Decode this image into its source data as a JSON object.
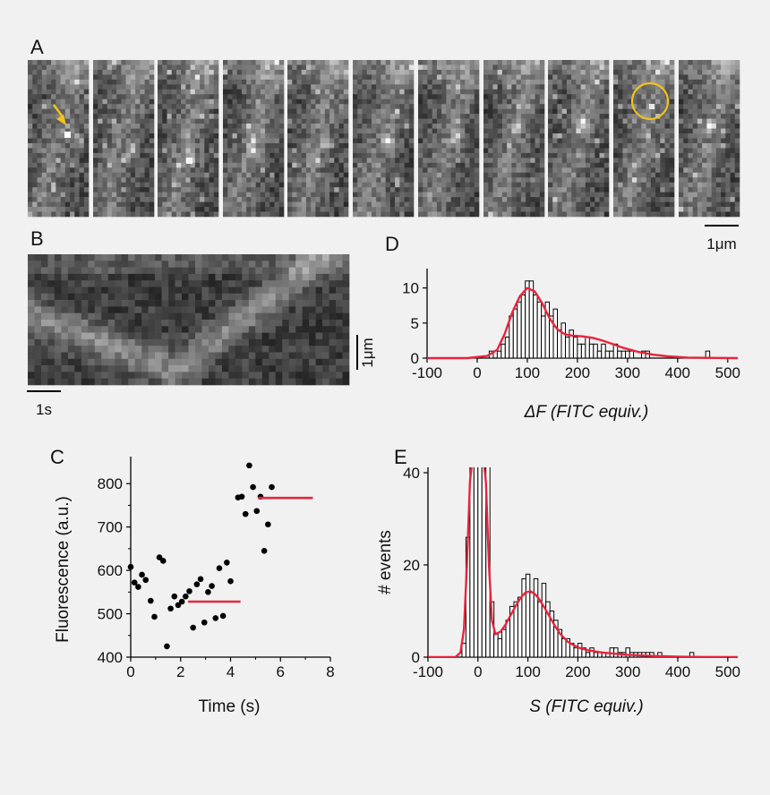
{
  "panel_labels": {
    "a": "A",
    "b": "B",
    "c": "C",
    "d": "D",
    "e": "E"
  },
  "scalebars": {
    "a": "1μm",
    "b_space": "1μm",
    "b_time": "1s"
  },
  "colors": {
    "fit": "#e8243c",
    "marker": "#f2c21b",
    "bar_edge": "#000000",
    "background": "#f1f1f1"
  },
  "chart_data": [
    {
      "panel": "C",
      "type": "scatter",
      "xlabel": "Time (s)",
      "ylabel": "Fluorescence (a.u.)",
      "xlim": [
        0,
        8
      ],
      "ylim": [
        400,
        850
      ],
      "xticks": [
        "0",
        "2",
        "4",
        "6",
        "8"
      ],
      "yticks": [
        "400",
        "500",
        "600",
        "700",
        "800"
      ],
      "points": [
        [
          0.0,
          608
        ],
        [
          0.15,
          572
        ],
        [
          0.3,
          562
        ],
        [
          0.45,
          590
        ],
        [
          0.6,
          578
        ],
        [
          0.8,
          530
        ],
        [
          0.95,
          493
        ],
        [
          1.15,
          630
        ],
        [
          1.3,
          622
        ],
        [
          1.45,
          425
        ],
        [
          1.6,
          512
        ],
        [
          1.75,
          540
        ],
        [
          1.9,
          520
        ],
        [
          2.05,
          528
        ],
        [
          2.2,
          540
        ],
        [
          2.35,
          552
        ],
        [
          2.5,
          468
        ],
        [
          2.65,
          568
        ],
        [
          2.8,
          580
        ],
        [
          2.95,
          480
        ],
        [
          3.1,
          550
        ],
        [
          3.25,
          564
        ],
        [
          3.4,
          490
        ],
        [
          3.55,
          605
        ],
        [
          3.7,
          495
        ],
        [
          3.85,
          618
        ],
        [
          4.0,
          575
        ],
        [
          4.3,
          768
        ],
        [
          4.45,
          770
        ],
        [
          4.6,
          730
        ],
        [
          4.75,
          842
        ],
        [
          4.9,
          792
        ],
        [
          5.05,
          737
        ],
        [
          5.2,
          770
        ],
        [
          5.35,
          645
        ],
        [
          5.5,
          706
        ],
        [
          5.65,
          792
        ]
      ],
      "fits": [
        {
          "x": [
            2.3,
            4.4
          ],
          "y": 528
        },
        {
          "x": [
            5.1,
            7.3
          ],
          "y": 767
        }
      ]
    },
    {
      "panel": "D",
      "type": "bar",
      "xlabel": "ΔF (FITC equiv.)",
      "xlim": [
        -100,
        520
      ],
      "ylim": [
        0,
        12
      ],
      "xticks": [
        "-100",
        "0",
        "100",
        "200",
        "300",
        "400",
        "500"
      ],
      "yticks": [
        "0",
        "5",
        "10"
      ],
      "bin_width": 8,
      "bin_starts": [
        16,
        24,
        32,
        40,
        48,
        56,
        64,
        72,
        80,
        88,
        96,
        104,
        112,
        120,
        128,
        136,
        144,
        152,
        160,
        168,
        176,
        184,
        192,
        200,
        208,
        216,
        224,
        232,
        240,
        248,
        256,
        264,
        272,
        280,
        288,
        296,
        304,
        312,
        320,
        328,
        336,
        344,
        352,
        360,
        368,
        456
      ],
      "values": [
        0,
        1,
        0,
        1,
        2,
        3,
        6,
        7,
        8,
        9,
        11,
        11,
        9,
        8,
        6,
        8,
        6,
        7,
        4,
        5,
        3,
        4,
        3,
        2,
        2,
        3,
        2,
        2,
        1,
        2,
        1,
        1,
        2,
        1,
        1,
        1,
        1,
        0,
        0,
        1,
        1,
        0,
        0,
        0,
        0,
        1
      ],
      "fit": {
        "x": [
          -100,
          -20,
          20,
          40,
          55,
          70,
          85,
          100,
          115,
          130,
          145,
          160,
          175,
          190,
          210,
          230,
          250,
          270,
          290,
          320,
          350,
          380,
          420,
          480,
          520
        ],
        "y": [
          0,
          0,
          0.3,
          1.2,
          3.5,
          6.5,
          8.8,
          10.0,
          9.5,
          7.8,
          5.6,
          4.1,
          3.4,
          3.2,
          3.1,
          2.9,
          2.5,
          2.0,
          1.5,
          0.9,
          0.5,
          0.25,
          0.08,
          0.02,
          0
        ]
      }
    },
    {
      "panel": "E",
      "type": "bar",
      "xlabel": "S (FITC equiv.)",
      "ylabel": "# events",
      "xlim": [
        -100,
        520
      ],
      "ylim": [
        0,
        40
      ],
      "xticks": [
        "-100",
        "0",
        "100",
        "200",
        "300",
        "400",
        "500"
      ],
      "yticks": [
        "0",
        "20",
        "40"
      ],
      "bin_width": 8,
      "bin_starts": [
        -32,
        -24,
        -16,
        -8,
        0,
        8,
        16,
        24,
        32,
        40,
        48,
        56,
        64,
        72,
        80,
        88,
        96,
        104,
        112,
        120,
        128,
        136,
        144,
        152,
        160,
        168,
        176,
        184,
        192,
        200,
        208,
        216,
        224,
        232,
        240,
        248,
        256,
        264,
        272,
        280,
        288,
        296,
        304,
        312,
        320,
        328,
        336,
        344,
        352,
        360,
        424
      ],
      "values": [
        3,
        26,
        45,
        45,
        45,
        45,
        45,
        12,
        5,
        4,
        6,
        8,
        11,
        12,
        13,
        17,
        18,
        14,
        17,
        12,
        16,
        12,
        10,
        8,
        6,
        4,
        4,
        3,
        2,
        3,
        2,
        1,
        2,
        1,
        1,
        1,
        0,
        2,
        2,
        1,
        1,
        2,
        1,
        1,
        1,
        1,
        1,
        1,
        0,
        1,
        1
      ],
      "fit": {
        "x": [
          -100,
          -45,
          -35,
          -28,
          -22,
          -16,
          -8,
          0,
          8,
          16,
          22,
          28,
          35,
          45,
          55,
          65,
          75,
          85,
          95,
          105,
          115,
          125,
          135,
          145,
          155,
          165,
          180,
          200,
          220,
          250,
          300,
          350,
          400,
          450,
          520
        ],
        "y": [
          0,
          0,
          1,
          6,
          20,
          38,
          46,
          46,
          46,
          38,
          20,
          8,
          5,
          5.5,
          7,
          9,
          11,
          12.8,
          14,
          14.3,
          13.6,
          12.2,
          10.4,
          8.5,
          6.6,
          5.0,
          3.3,
          2.1,
          1.5,
          1.0,
          0.5,
          0.25,
          0.1,
          0.03,
          0
        ]
      }
    }
  ]
}
